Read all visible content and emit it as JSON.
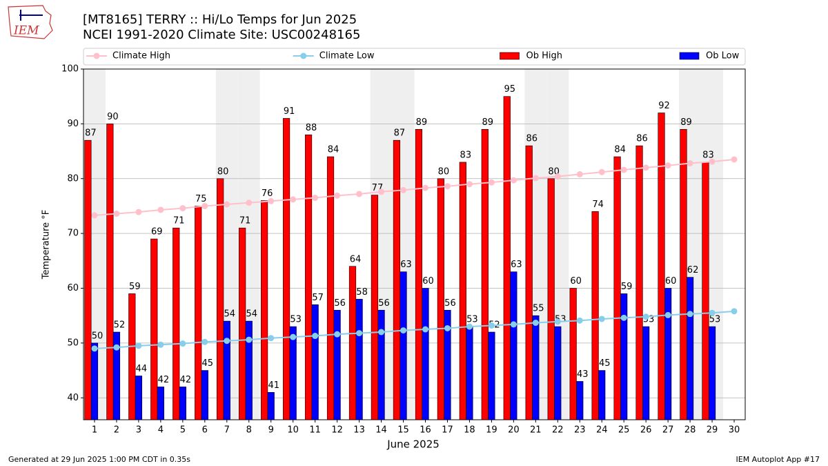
{
  "logo": "IEM",
  "footer": {
    "left": "Generated at 29 Jun 2025 1:00 PM CDT in 0.35s",
    "right": "IEM Autoplot App #17"
  },
  "chart_data": {
    "type": "bar",
    "title": "[MT8165] TERRY :: Hi/Lo Temps for Jun 2025",
    "subtitle": "NCEI 1991-2020 Climate Site: USC00248165",
    "xlabel": "June 2025",
    "ylabel": "Temperature °F",
    "x": [
      1,
      2,
      3,
      4,
      5,
      6,
      7,
      8,
      9,
      10,
      11,
      12,
      13,
      14,
      15,
      16,
      17,
      18,
      19,
      20,
      21,
      22,
      23,
      24,
      25,
      26,
      27,
      28,
      29,
      30
    ],
    "xlim": [
      0.5,
      30.5
    ],
    "xticks": [
      1,
      2,
      3,
      4,
      5,
      6,
      7,
      8,
      9,
      10,
      11,
      12,
      13,
      14,
      15,
      16,
      17,
      18,
      19,
      20,
      21,
      22,
      23,
      24,
      25,
      26,
      27,
      28,
      29,
      30
    ],
    "ylim": [
      36,
      100
    ],
    "yticks": [
      40,
      50,
      60,
      70,
      80,
      90,
      100
    ],
    "grid": true,
    "legend": "top",
    "shaded_x": [
      1,
      7,
      8,
      14,
      15,
      21,
      22,
      28,
      29
    ],
    "series": [
      {
        "name": "Climate High",
        "type": "line",
        "color": "#ffc0cb",
        "values": [
          73.3,
          73.6,
          73.9,
          74.3,
          74.6,
          75.0,
          75.3,
          75.6,
          75.9,
          76.2,
          76.5,
          76.9,
          77.2,
          77.6,
          77.9,
          78.3,
          78.6,
          79.0,
          79.3,
          79.7,
          80.1,
          80.4,
          80.8,
          81.2,
          81.6,
          82.0,
          82.4,
          82.8,
          83.1,
          83.5
        ]
      },
      {
        "name": "Climate Low",
        "type": "line",
        "color": "#87ceeb",
        "values": [
          49.0,
          49.2,
          49.5,
          49.7,
          49.9,
          50.2,
          50.4,
          50.6,
          50.9,
          51.1,
          51.3,
          51.6,
          51.8,
          52.0,
          52.3,
          52.5,
          52.7,
          53.0,
          53.2,
          53.4,
          53.7,
          53.9,
          54.1,
          54.4,
          54.6,
          54.8,
          55.1,
          55.3,
          55.5,
          55.8
        ]
      },
      {
        "name": "Ob High",
        "type": "bar",
        "color": "#ff0000",
        "values": [
          87,
          90,
          59,
          69,
          71,
          75,
          80,
          71,
          76,
          91,
          88,
          84,
          64,
          77,
          87,
          89,
          80,
          83,
          89,
          95,
          86,
          80,
          60,
          74,
          84,
          86,
          92,
          89,
          83,
          null
        ]
      },
      {
        "name": "Ob Low",
        "type": "bar",
        "color": "#0000ff",
        "values": [
          50,
          52,
          44,
          42,
          42,
          45,
          54,
          54,
          41,
          53,
          57,
          56,
          58,
          56,
          63,
          60,
          56,
          53,
          52,
          63,
          55,
          53,
          43,
          45,
          59,
          53,
          60,
          62,
          53,
          null
        ]
      }
    ]
  }
}
